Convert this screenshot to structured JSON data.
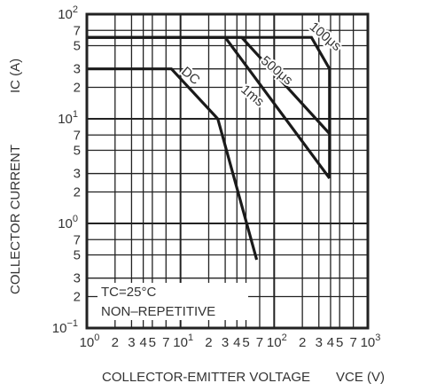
{
  "chart_data": {
    "type": "line",
    "title": "",
    "xlabel": "COLLECTOR-EMITTER VOLTAGE",
    "xlabel_symbol": "VCE (V)",
    "ylabel": "COLLECTOR CURRENT",
    "ylabel_symbol": "IC (A)",
    "x_scale": "log",
    "y_scale": "log",
    "xlim": [
      1,
      1000
    ],
    "ylim": [
      0.1,
      100
    ],
    "grid": true,
    "x_ticks": [
      {
        "value": 1,
        "base": "10",
        "exp": "0"
      },
      {
        "value": 2,
        "label": "2"
      },
      {
        "value": 3,
        "label": "3"
      },
      {
        "value": 4,
        "label": "4"
      },
      {
        "value": 5,
        "label": "5"
      },
      {
        "value": 7,
        "label": "7"
      },
      {
        "value": 10,
        "base": "10",
        "exp": "1"
      },
      {
        "value": 20,
        "label": "2"
      },
      {
        "value": 30,
        "label": "3"
      },
      {
        "value": 40,
        "label": "4"
      },
      {
        "value": 50,
        "label": "5"
      },
      {
        "value": 70,
        "label": "7"
      },
      {
        "value": 100,
        "base": "10",
        "exp": "2"
      },
      {
        "value": 200,
        "label": "2"
      },
      {
        "value": 300,
        "label": "3"
      },
      {
        "value": 400,
        "label": "4"
      },
      {
        "value": 500,
        "label": "5"
      },
      {
        "value": 700,
        "label": "7"
      },
      {
        "value": 1000,
        "base": "10",
        "exp": "3"
      }
    ],
    "y_ticks": [
      {
        "value": 0.1,
        "base": "10",
        "exp": "−1"
      },
      {
        "value": 0.2,
        "label": "2"
      },
      {
        "value": 0.3,
        "label": "3"
      },
      {
        "value": 0.5,
        "label": "5"
      },
      {
        "value": 0.7,
        "label": "7"
      },
      {
        "value": 1,
        "base": "10",
        "exp": "0"
      },
      {
        "value": 2,
        "label": "2"
      },
      {
        "value": 3,
        "label": "3"
      },
      {
        "value": 5,
        "label": "5"
      },
      {
        "value": 7,
        "label": "7"
      },
      {
        "value": 10,
        "base": "10",
        "exp": "1"
      },
      {
        "value": 20,
        "label": "2"
      },
      {
        "value": 30,
        "label": "3"
      },
      {
        "value": 50,
        "label": "5"
      },
      {
        "value": 70,
        "label": "7"
      },
      {
        "value": 100,
        "base": "10",
        "exp": "2"
      }
    ],
    "series": [
      {
        "name": "DC",
        "x": [
          1,
          8,
          25,
          65
        ],
        "y": [
          30,
          30,
          10,
          0.45
        ],
        "label_at": [
          12,
          24
        ],
        "label_angle": 40
      },
      {
        "name": "1ms",
        "x": [
          1,
          30,
          390
        ],
        "y": [
          60,
          60,
          2.7
        ],
        "label_at": [
          55,
          15.5
        ],
        "label_angle": 40
      },
      {
        "name": "500μs",
        "x": [
          1,
          45,
          390
        ],
        "y": [
          60,
          60,
          7.2
        ],
        "label_at": [
          100,
          27
        ],
        "label_angle": 40
      },
      {
        "name": "100μs",
        "x": [
          1,
          250,
          390,
          390
        ],
        "y": [
          60,
          60,
          30,
          2.7
        ],
        "label_at": [
          330,
          57
        ],
        "label_angle": 40
      }
    ],
    "annotations": [
      "TC=25°C",
      "NON–REPETITIVE"
    ]
  }
}
